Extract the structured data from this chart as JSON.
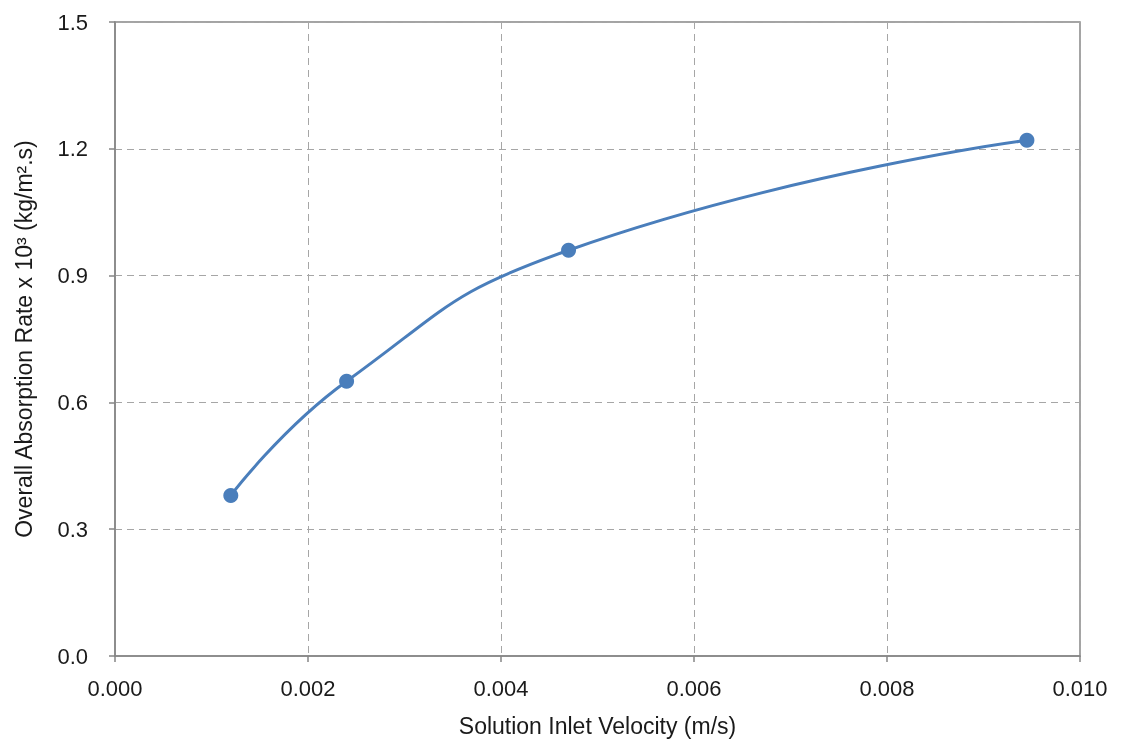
{
  "chart_data": {
    "type": "line",
    "xlabel": "Solution Inlet Velocity (m/s)",
    "ylabel": "Overall Absorption Rate x 10³ (kg/m².s)",
    "x": [
      0.0012,
      0.0024,
      0.0047,
      0.00945
    ],
    "series": [
      {
        "color": "#4a7ebb",
        "values": [
          0.38,
          0.65,
          0.96,
          1.22
        ]
      }
    ],
    "xlim": [
      0,
      0.01
    ],
    "xticks": [
      {
        "value": 0,
        "label": "0.000"
      },
      {
        "value": 0.002,
        "label": "0.002"
      },
      {
        "value": 0.004,
        "label": "0.004"
      },
      {
        "value": 0.006,
        "label": "0.006"
      },
      {
        "value": 0.008,
        "label": "0.008"
      },
      {
        "value": 0.01,
        "label": "0.010"
      }
    ],
    "ylim": [
      0,
      1.5
    ],
    "yticks": [
      {
        "value": 0,
        "label": "0.0"
      },
      0.3,
      0.6,
      0.9,
      1.2,
      1.5
    ],
    "grid": true,
    "marker": "circle",
    "line_style": "solid"
  }
}
